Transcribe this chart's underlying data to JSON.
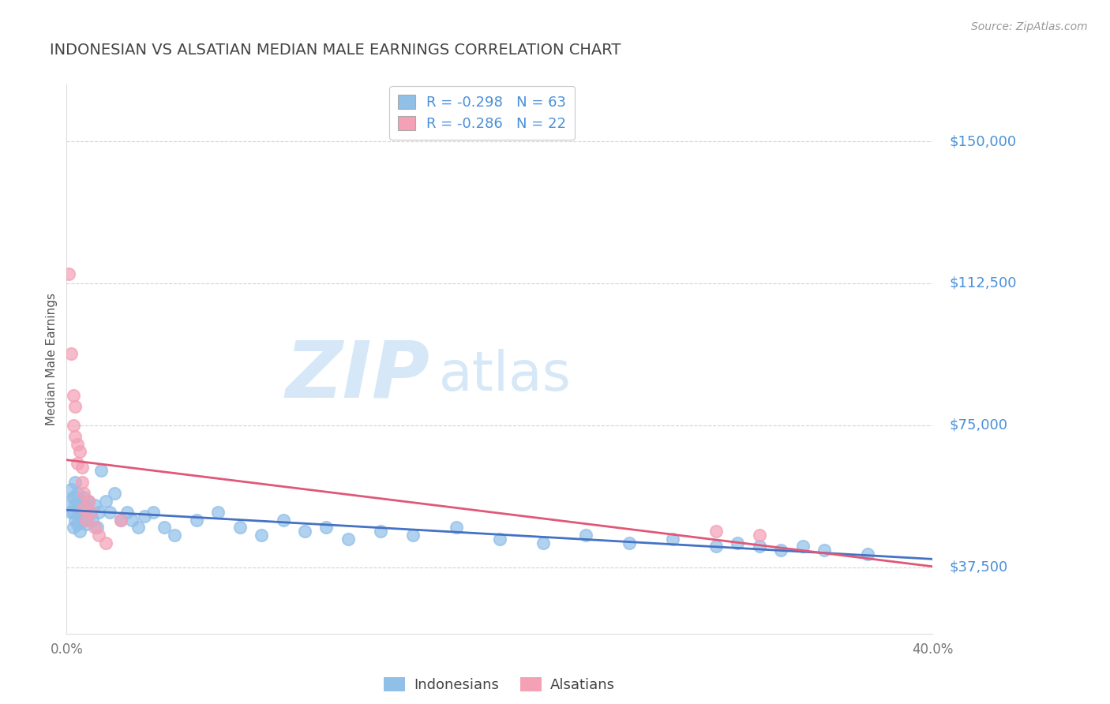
{
  "title": "INDONESIAN VS ALSATIAN MEDIAN MALE EARNINGS CORRELATION CHART",
  "source_text": "Source: ZipAtlas.com",
  "ylabel": "Median Male Earnings",
  "xlim": [
    0.0,
    0.4
  ],
  "ylim": [
    20000,
    165000
  ],
  "yticks": [
    37500,
    75000,
    112500,
    150000
  ],
  "ytick_labels": [
    "$37,500",
    "$75,000",
    "$112,500",
    "$150,000"
  ],
  "xticks": [
    0.0,
    0.1,
    0.2,
    0.3,
    0.4
  ],
  "xtick_labels": [
    "0.0%",
    "",
    "",
    "",
    "40.0%"
  ],
  "watermark_zip": "ZIP",
  "watermark_atlas": "atlas",
  "indonesian_color": "#90bfe8",
  "alsatian_color": "#f4a0b5",
  "indonesian_line_color": "#4472c4",
  "alsatian_line_color": "#e05878",
  "legend_line1": "R = -0.298   N = 63",
  "legend_line2": "R = -0.286   N = 22",
  "legend_label_indonesian": "Indonesians",
  "legend_label_alsatian": "Alsatians",
  "indonesian_x": [
    0.001,
    0.002,
    0.002,
    0.003,
    0.003,
    0.003,
    0.004,
    0.004,
    0.004,
    0.005,
    0.005,
    0.005,
    0.006,
    0.006,
    0.006,
    0.007,
    0.007,
    0.008,
    0.008,
    0.009,
    0.009,
    0.01,
    0.01,
    0.011,
    0.012,
    0.013,
    0.014,
    0.015,
    0.016,
    0.018,
    0.02,
    0.022,
    0.025,
    0.028,
    0.03,
    0.033,
    0.036,
    0.04,
    0.045,
    0.05,
    0.06,
    0.07,
    0.08,
    0.09,
    0.1,
    0.11,
    0.12,
    0.13,
    0.145,
    0.16,
    0.18,
    0.2,
    0.22,
    0.24,
    0.26,
    0.28,
    0.3,
    0.31,
    0.32,
    0.33,
    0.34,
    0.35,
    0.37
  ],
  "indonesian_y": [
    55000,
    58000,
    52000,
    56000,
    52000,
    48000,
    60000,
    54000,
    50000,
    57000,
    53000,
    49000,
    55000,
    51000,
    47000,
    54000,
    50000,
    56000,
    50000,
    53000,
    49000,
    55000,
    51000,
    52000,
    50000,
    54000,
    48000,
    52000,
    63000,
    55000,
    52000,
    57000,
    50000,
    52000,
    50000,
    48000,
    51000,
    52000,
    48000,
    46000,
    50000,
    52000,
    48000,
    46000,
    50000,
    47000,
    48000,
    45000,
    47000,
    46000,
    48000,
    45000,
    44000,
    46000,
    44000,
    45000,
    43000,
    44000,
    43000,
    42000,
    43000,
    42000,
    41000
  ],
  "alsatian_x": [
    0.001,
    0.002,
    0.003,
    0.003,
    0.004,
    0.004,
    0.005,
    0.005,
    0.006,
    0.007,
    0.007,
    0.008,
    0.008,
    0.009,
    0.01,
    0.011,
    0.013,
    0.015,
    0.018,
    0.025,
    0.3,
    0.32
  ],
  "alsatian_y": [
    115000,
    94000,
    83000,
    75000,
    80000,
    72000,
    70000,
    65000,
    68000,
    64000,
    60000,
    57000,
    53000,
    50000,
    55000,
    52000,
    48000,
    46000,
    44000,
    50000,
    47000,
    46000
  ],
  "background_color": "#ffffff",
  "grid_color": "#c8c8c8",
  "title_color": "#444444",
  "ylabel_color": "#555555",
  "ytick_label_color": "#4a90d9",
  "xtick_label_color": "#777777",
  "source_color": "#999999"
}
